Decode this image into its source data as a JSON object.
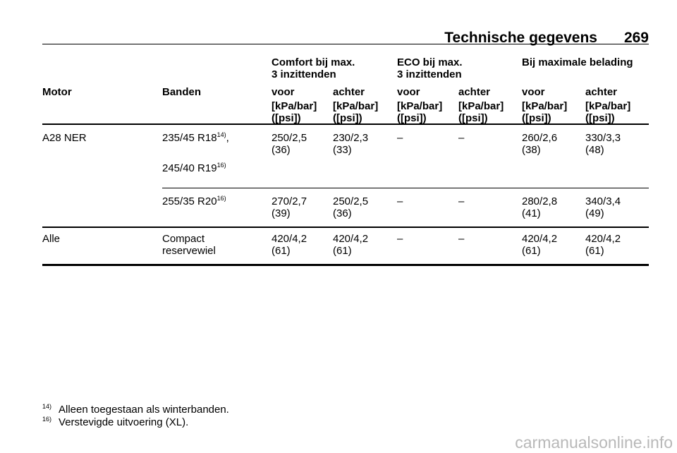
{
  "header": {
    "title": "Technische gegevens",
    "page": "269"
  },
  "table": {
    "group_headers": [
      "Comfort bij max.\n3 inzittenden",
      "ECO bij max.\n3 inzittenden",
      "Bij maximale belading"
    ],
    "columns": [
      "Motor",
      "Banden",
      "voor",
      "achter",
      "voor",
      "achter",
      "voor",
      "achter"
    ],
    "units": [
      "[kPa/bar]\n([psi])",
      "[kPa/bar]\n([psi])",
      "[kPa/bar]\n([psi])",
      "[kPa/bar]\n([psi])",
      "[kPa/bar]\n([psi])",
      "[kPa/bar]\n([psi])"
    ],
    "groups": [
      {
        "motor": "A28 NER",
        "rows": [
          {
            "tyres": [
              {
                "size": "235/45 R18",
                "note": "14)",
                "suffix": ","
              },
              {
                "size": "245/40 R19",
                "note": "16)"
              }
            ],
            "values": [
              "250/2,5\n(36)",
              "230/2,3\n(33)",
              "–",
              "–",
              "260/2,6\n(38)",
              "330/3,3\n(48)"
            ]
          },
          {
            "tyres": [
              {
                "size": "255/35 R20",
                "note": "16)"
              }
            ],
            "values": [
              "270/2,7\n(39)",
              "250/2,5\n(36)",
              "–",
              "–",
              "280/2,8\n(41)",
              "340/3,4\n(49)"
            ]
          }
        ]
      },
      {
        "motor": "Alle",
        "rows": [
          {
            "tyres": [
              {
                "size": "Compact\nreservewiel"
              }
            ],
            "values": [
              "420/4,2\n(61)",
              "420/4,2\n(61)",
              "–",
              "–",
              "420/4,2\n(61)",
              "420/4,2\n(61)"
            ]
          }
        ]
      }
    ]
  },
  "footnotes": [
    {
      "mark": "14)",
      "text": "Alleen toegestaan als winterbanden."
    },
    {
      "mark": "16)",
      "text": "Verstevigde uitvoering (XL)."
    }
  ],
  "watermark": "carmanualsonline.info"
}
